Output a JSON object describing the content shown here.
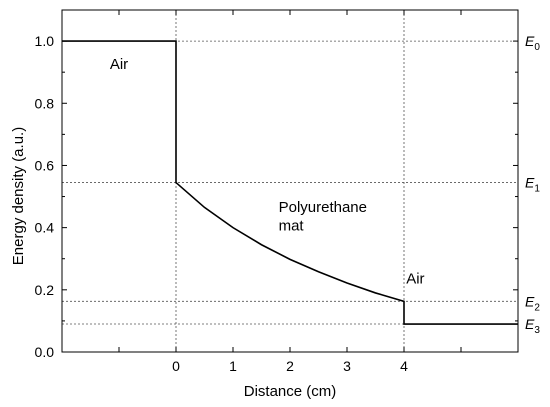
{
  "chart_data": {
    "type": "line",
    "xlabel": "Distance (cm)",
    "ylabel": "Energy density (a.u.)",
    "xlim": [
      -2,
      6
    ],
    "ylim": [
      0,
      1.1
    ],
    "x_ticks": [
      {
        "value": -1,
        "label": ""
      },
      {
        "value": 0,
        "label": "0"
      },
      {
        "value": 1,
        "label": "1"
      },
      {
        "value": 2,
        "label": "2"
      },
      {
        "value": 3,
        "label": "3"
      },
      {
        "value": 4,
        "label": "4"
      },
      {
        "value": 5,
        "label": ""
      }
    ],
    "y_ticks": [
      {
        "value": 0.0,
        "label": "0.0"
      },
      {
        "value": 0.2,
        "label": "0.2"
      },
      {
        "value": 0.4,
        "label": "0.4"
      },
      {
        "value": 0.6,
        "label": "0.6"
      },
      {
        "value": 0.8,
        "label": "0.8"
      },
      {
        "value": 1.0,
        "label": "1.0"
      }
    ],
    "series": [
      {
        "x": [
          -2,
          0,
          0,
          0.5,
          1,
          1.5,
          2,
          2.5,
          3,
          3.5,
          4,
          4,
          6
        ],
        "y": [
          1.0,
          1.0,
          0.545,
          0.465,
          0.4,
          0.345,
          0.298,
          0.258,
          0.222,
          0.19,
          0.163,
          0.09,
          0.09
        ]
      }
    ],
    "horizontal_reference_lines": [
      {
        "value": 1.0,
        "label": "E",
        "subscript": "0"
      },
      {
        "value": 0.545,
        "label": "E",
        "subscript": "1"
      },
      {
        "value": 0.163,
        "label": "E",
        "subscript": "2"
      },
      {
        "value": 0.09,
        "label": "E",
        "subscript": "3"
      }
    ],
    "vertical_reference_lines": [
      0,
      4
    ],
    "annotations": [
      {
        "text": "Air",
        "x": -1.0,
        "y": 0.91
      },
      {
        "text": "Polyurethane",
        "x": 1.8,
        "y": 0.45
      },
      {
        "text": "mat",
        "x": 1.8,
        "y": 0.39
      },
      {
        "text": "Air",
        "x": 4.2,
        "y": 0.22
      }
    ],
    "grid": false,
    "legend": "none"
  }
}
